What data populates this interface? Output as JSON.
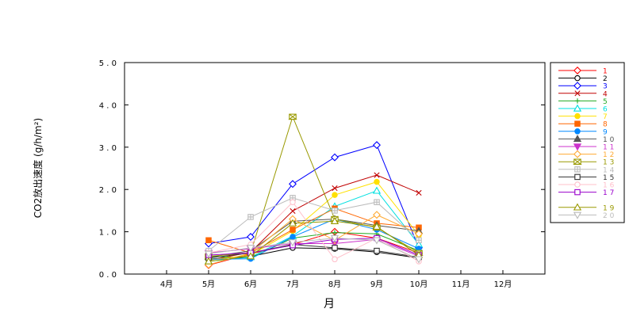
{
  "chart_data": {
    "type": "line",
    "xlabel": "月",
    "ylabel": "CO2放出速度 (g/h/m²)",
    "ylim": [
      0,
      5
    ],
    "yticks": [
      "0.0",
      "1.0",
      "2.0",
      "3.0",
      "4.0",
      "5.0"
    ],
    "categories": [
      "4月",
      "5月",
      "6月",
      "7月",
      "8月",
      "9月",
      "10月",
      "11月",
      "12月"
    ],
    "grid": false,
    "legend_position": "right",
    "series": [
      {
        "name": "1",
        "color": "#ff0000",
        "marker": "diamond",
        "values": [
          null,
          0.21,
          0.48,
          0.7,
          1.0,
          0.85,
          0.5,
          null,
          null
        ]
      },
      {
        "name": "2",
        "color": "#000000",
        "marker": "circle",
        "values": [
          null,
          0.35,
          0.42,
          0.62,
          0.6,
          0.52,
          0.38,
          null,
          null
        ]
      },
      {
        "name": "3",
        "color": "#0000ff",
        "marker": "diamond",
        "values": [
          null,
          0.72,
          0.88,
          2.13,
          2.76,
          3.05,
          0.62,
          null,
          null
        ]
      },
      {
        "name": "4",
        "color": "#c00000",
        "marker": "x",
        "values": [
          null,
          0.32,
          0.52,
          1.49,
          2.03,
          2.34,
          1.92,
          null,
          null
        ]
      },
      {
        "name": "5",
        "color": "#22aa22",
        "marker": "plus",
        "values": [
          null,
          0.42,
          0.38,
          0.85,
          0.98,
          0.95,
          0.55,
          null,
          null
        ]
      },
      {
        "name": "6",
        "color": "#00e0e0",
        "marker": "triangle",
        "values": [
          null,
          0.3,
          0.4,
          0.9,
          1.6,
          1.97,
          0.7,
          null,
          null
        ]
      },
      {
        "name": "7",
        "color": "#ffe000",
        "marker": "circle-filled",
        "values": [
          null,
          0.33,
          0.45,
          1.02,
          1.87,
          2.18,
          0.92,
          null,
          null
        ]
      },
      {
        "name": "8",
        "color": "#ff6600",
        "marker": "square-filled",
        "values": [
          null,
          0.8,
          0.5,
          1.05,
          1.55,
          1.2,
          1.1,
          null,
          null
        ]
      },
      {
        "name": "9",
        "color": "#0088ff",
        "marker": "circle-filled",
        "values": [
          null,
          0.35,
          0.36,
          0.88,
          1.3,
          1.05,
          0.6,
          null,
          null
        ]
      },
      {
        "name": "10",
        "color": "#555555",
        "marker": "triangle-filled",
        "values": [
          null,
          0.4,
          0.55,
          1.25,
          1.3,
          1.15,
          1.02,
          null,
          null
        ]
      },
      {
        "name": "11",
        "color": "#cc33cc",
        "marker": "triangle-down-filled",
        "values": [
          null,
          0.5,
          0.6,
          0.72,
          0.72,
          0.82,
          0.42,
          null,
          null
        ]
      },
      {
        "name": "12",
        "color": "#ffaa33",
        "marker": "diamond",
        "values": [
          null,
          0.22,
          0.5,
          1.3,
          0.8,
          1.4,
          0.95,
          null,
          null
        ]
      },
      {
        "name": "13",
        "color": "#999900",
        "marker": "hourglass",
        "values": [
          null,
          0.42,
          0.5,
          3.72,
          1.3,
          1.1,
          0.5,
          null,
          null
        ]
      },
      {
        "name": "14",
        "color": "#bbbbbb",
        "marker": "square-cross",
        "values": [
          null,
          0.55,
          1.35,
          1.8,
          1.5,
          1.7,
          0.8,
          null,
          null
        ]
      },
      {
        "name": "15",
        "color": "#333333",
        "marker": "square",
        "values": [
          null,
          0.38,
          0.5,
          0.7,
          0.62,
          0.55,
          0.4,
          null,
          null
        ]
      },
      {
        "name": "16",
        "color": "#ffc0cb",
        "marker": "circle",
        "values": [
          null,
          0.5,
          0.7,
          1.7,
          0.35,
          0.85,
          0.3,
          null,
          null
        ]
      },
      {
        "name": "17",
        "color": "#9900cc",
        "marker": "square",
        "values": [
          null,
          0.45,
          0.5,
          0.68,
          0.82,
          0.85,
          0.45,
          null,
          null
        ]
      },
      {
        "name": "19",
        "color": "#999900",
        "marker": "triangle",
        "values": [
          null,
          0.3,
          0.42,
          1.2,
          1.25,
          1.12,
          0.45,
          null,
          null
        ]
      },
      {
        "name": "20",
        "color": "#bbbbbb",
        "marker": "triangle-down",
        "values": [
          null,
          0.48,
          0.62,
          0.75,
          0.85,
          0.8,
          0.35,
          null,
          null
        ]
      }
    ],
    "legend": [
      {
        "label": "1",
        "series": 0
      },
      {
        "label": "2",
        "series": 1
      },
      {
        "label": "3",
        "series": 2
      },
      {
        "label": "4",
        "series": 3
      },
      {
        "label": "5",
        "series": 4
      },
      {
        "label": "6",
        "series": 5
      },
      {
        "label": "7",
        "series": 6
      },
      {
        "label": "8",
        "series": 7
      },
      {
        "label": "9",
        "series": 8
      },
      {
        "label": "10",
        "series": 9
      },
      {
        "label": "11",
        "series": 10
      },
      {
        "label": "12",
        "series": 11
      },
      {
        "label": "13",
        "series": 12
      },
      {
        "label": "14",
        "series": 13
      },
      {
        "label": "15",
        "series": 14
      },
      {
        "label": "16",
        "series": 15
      },
      {
        "label": "17",
        "series": 16
      },
      {
        "label": "",
        "series": null
      },
      {
        "label": "19",
        "series": 17
      },
      {
        "label": "20",
        "series": 18
      }
    ]
  }
}
